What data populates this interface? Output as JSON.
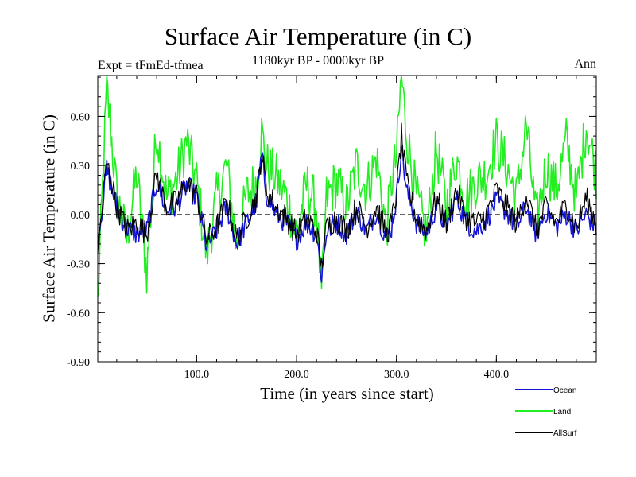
{
  "chart_data": {
    "type": "line",
    "title": "Surface Air Temperature (in C)",
    "subtitle_left": "Expt = tFmEd-tfmea",
    "subtitle_center": "1180kyr BP - 0000kyr BP",
    "subtitle_right": "Ann",
    "xlabel": "Time (in years since start)",
    "ylabel": "Surface Air Temperature (in C)",
    "xlim": [
      1,
      500
    ],
    "ylim": [
      -0.9,
      0.85
    ],
    "xticks": [
      100,
      200,
      300,
      400
    ],
    "xtick_labels": [
      "100.0",
      "200.0",
      "300.0",
      "400.0"
    ],
    "yticks": [
      -0.9,
      -0.6,
      -0.3,
      0.0,
      0.3,
      0.6
    ],
    "ytick_labels": [
      "-0.90",
      "-0.60",
      "-0.30",
      "0.00",
      "0.30",
      "0.60"
    ],
    "zero_line": true,
    "legend_position": "bottom-right",
    "x": [
      1,
      10,
      20,
      30,
      40,
      50,
      60,
      70,
      80,
      90,
      100,
      110,
      120,
      130,
      140,
      150,
      160,
      165,
      170,
      180,
      190,
      200,
      210,
      220,
      225,
      230,
      240,
      250,
      260,
      270,
      280,
      290,
      295,
      300,
      305,
      310,
      320,
      330,
      340,
      350,
      360,
      370,
      380,
      390,
      400,
      410,
      420,
      430,
      440,
      450,
      460,
      470,
      480,
      490,
      500
    ],
    "series": [
      {
        "name": "Ocean",
        "color": "#1515d8",
        "values": [
          -0.18,
          0.28,
          0.05,
          -0.08,
          -0.12,
          -0.1,
          0.2,
          0.02,
          0.05,
          0.18,
          0.1,
          -0.2,
          -0.1,
          0.05,
          -0.18,
          -0.05,
          0.08,
          0.36,
          0.12,
          0.0,
          -0.05,
          -0.15,
          -0.05,
          -0.12,
          -0.38,
          -0.1,
          -0.05,
          -0.12,
          0.02,
          -0.1,
          0.02,
          -0.15,
          -0.08,
          0.1,
          0.42,
          0.15,
          -0.05,
          -0.12,
          0.05,
          -0.08,
          0.1,
          -0.05,
          -0.1,
          -0.03,
          0.08,
          0.02,
          -0.08,
          0.05,
          -0.12,
          0.02,
          -0.08,
          0.0,
          -0.1,
          0.0,
          -0.08
        ]
      },
      {
        "name": "Land",
        "color": "#22ee22",
        "values": [
          -0.55,
          0.78,
          0.12,
          -0.15,
          0.25,
          -0.35,
          0.52,
          0.1,
          0.22,
          0.45,
          0.2,
          -0.25,
          0.1,
          0.3,
          -0.2,
          0.12,
          0.2,
          0.5,
          0.3,
          0.22,
          0.1,
          -0.12,
          0.18,
          0.05,
          -0.52,
          0.1,
          0.2,
          0.05,
          0.3,
          0.15,
          0.35,
          -0.1,
          0.2,
          0.35,
          0.85,
          0.5,
          0.1,
          -0.12,
          0.4,
          0.05,
          0.35,
          0.1,
          0.2,
          0.25,
          0.45,
          0.3,
          0.1,
          0.55,
          -0.05,
          0.3,
          0.15,
          0.45,
          0.1,
          0.55,
          0.25
        ]
      },
      {
        "name": "AllSurf",
        "color": "#000000",
        "values": [
          -0.22,
          0.32,
          0.06,
          -0.1,
          -0.05,
          -0.12,
          0.25,
          0.04,
          0.08,
          0.2,
          0.12,
          -0.15,
          -0.08,
          0.08,
          -0.15,
          -0.02,
          0.1,
          0.38,
          0.15,
          0.04,
          -0.02,
          -0.12,
          -0.02,
          -0.1,
          -0.32,
          -0.08,
          -0.02,
          -0.1,
          0.05,
          -0.08,
          0.05,
          -0.12,
          -0.05,
          0.12,
          0.48,
          0.2,
          -0.02,
          -0.1,
          0.1,
          -0.06,
          0.15,
          -0.02,
          -0.06,
          0.0,
          0.15,
          0.05,
          -0.05,
          0.12,
          -0.1,
          0.05,
          -0.05,
          0.06,
          -0.08,
          0.1,
          -0.05
        ]
      }
    ]
  }
}
